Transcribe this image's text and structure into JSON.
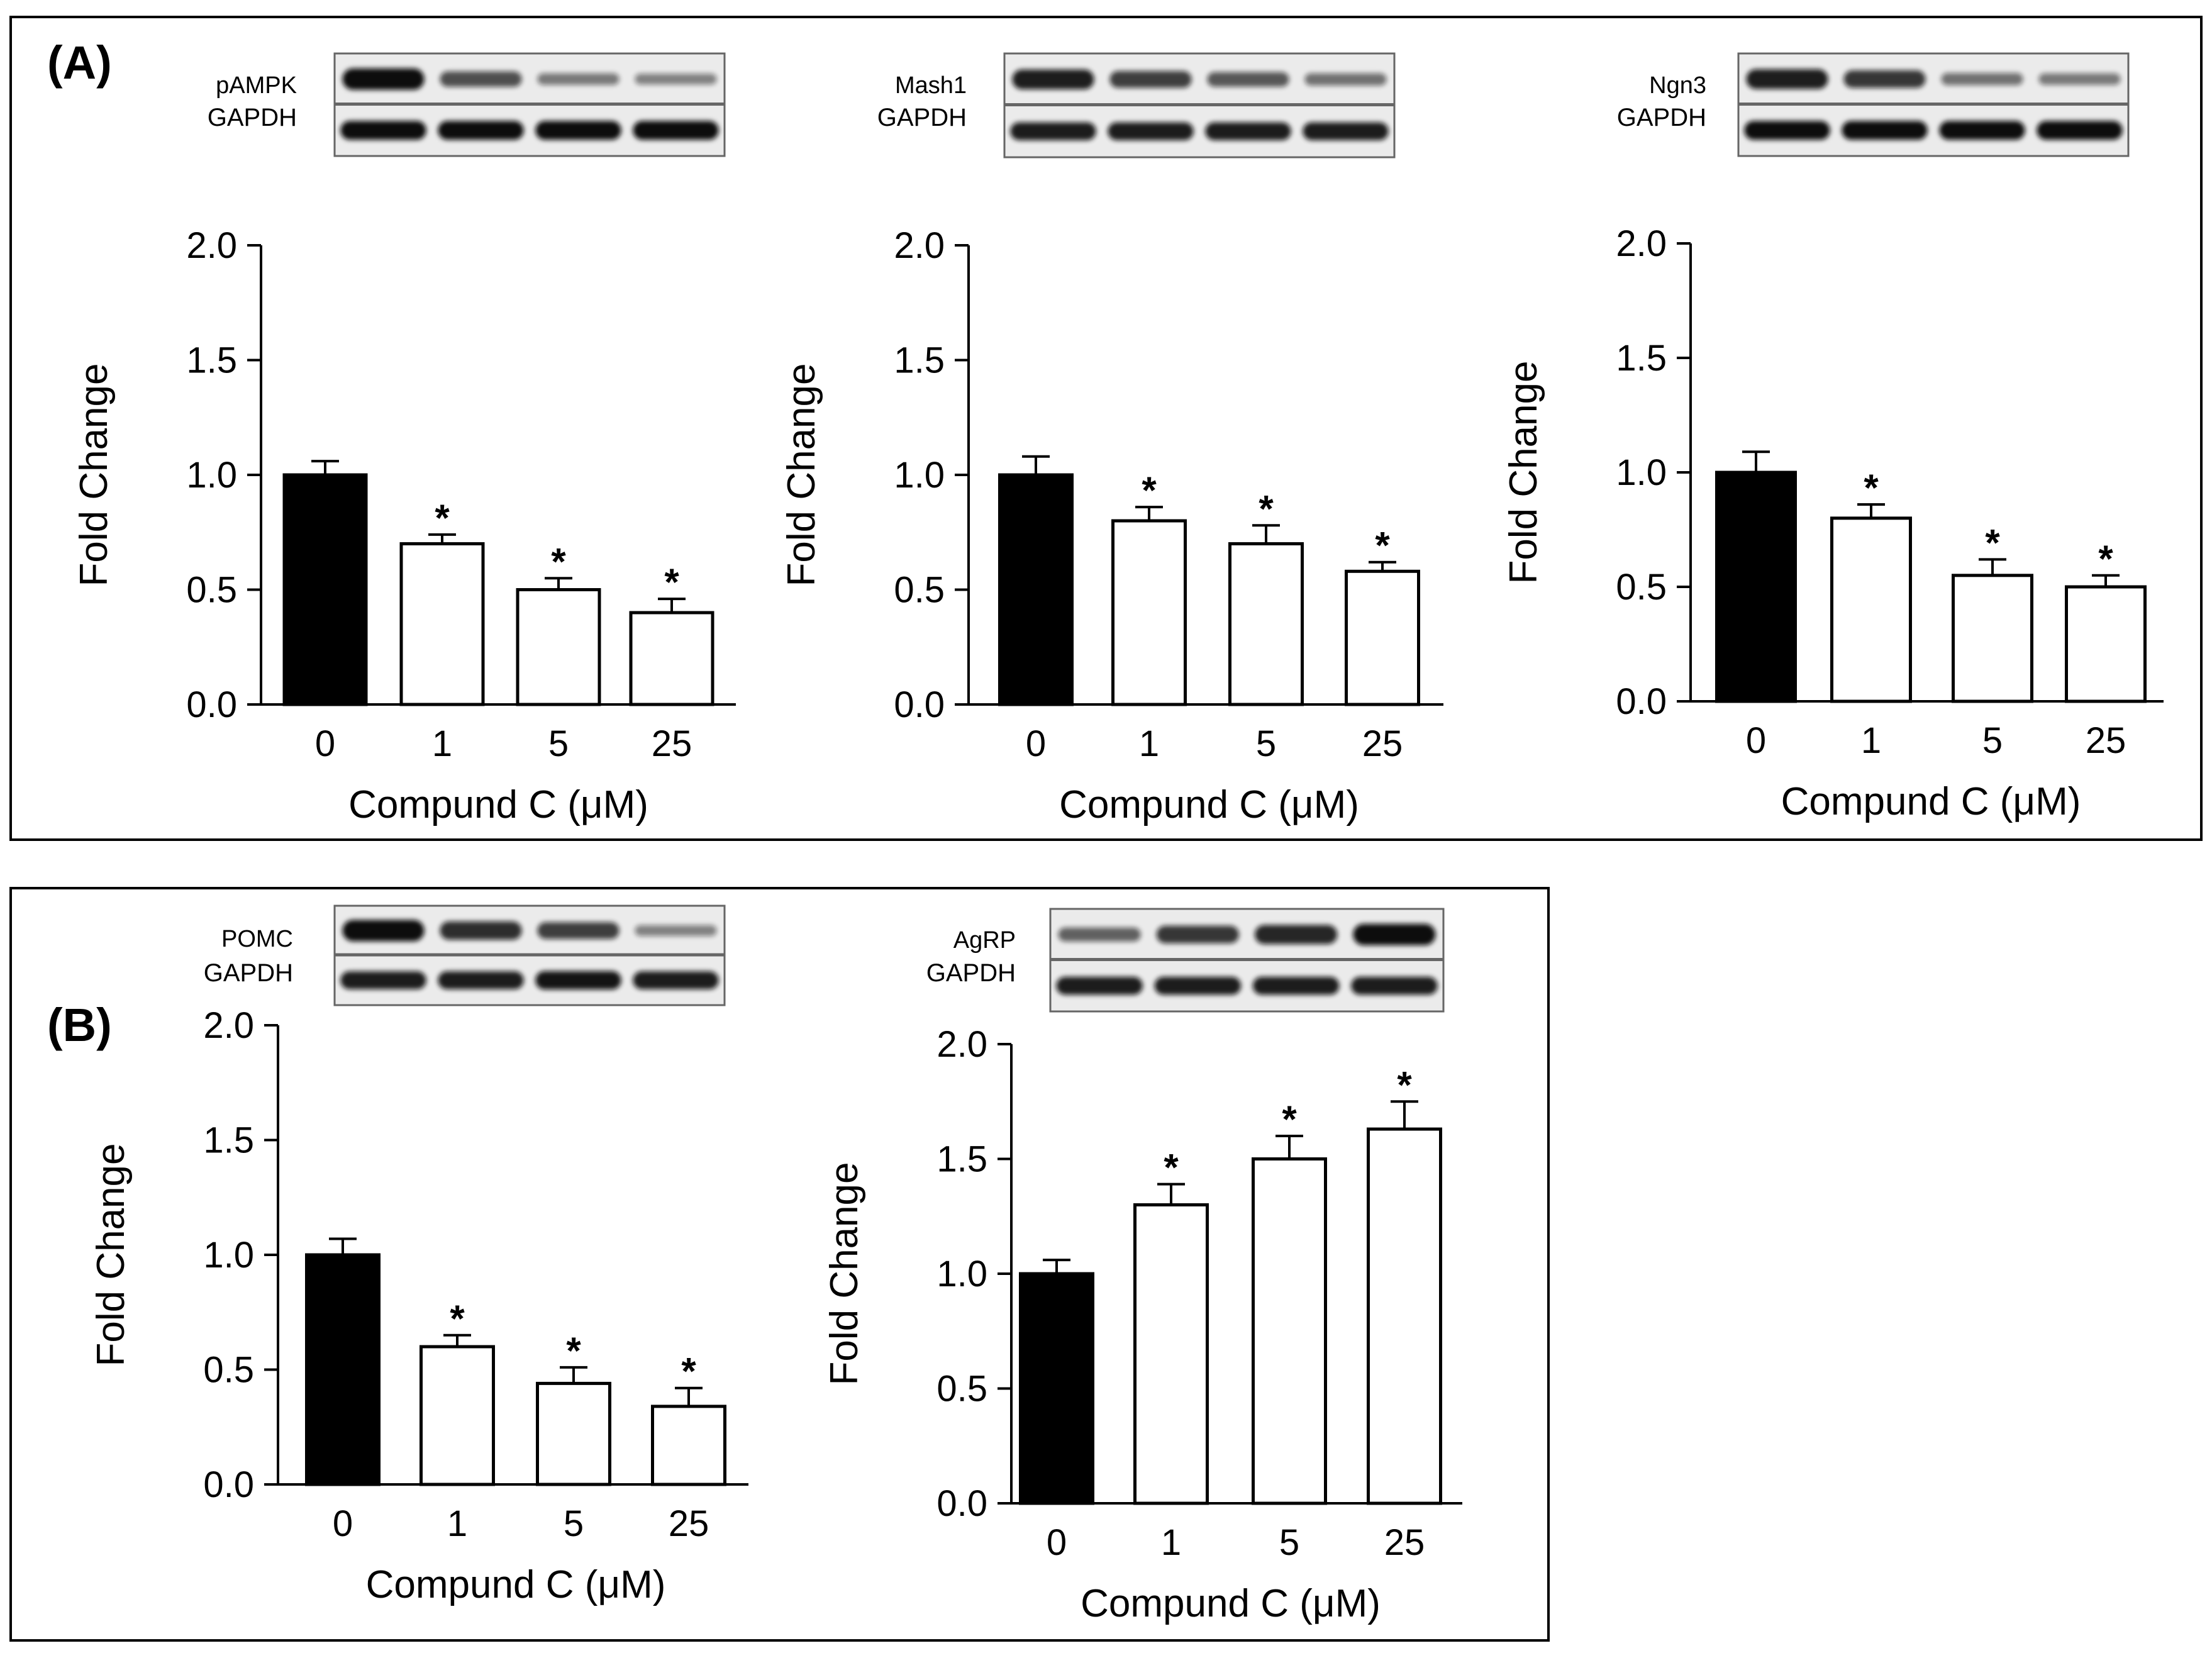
{
  "panels": [
    {
      "label": "(A)"
    },
    {
      "label": "(B)"
    }
  ],
  "chart_data": [
    {
      "type": "bar",
      "categories": [
        "0",
        "1",
        "5",
        "25"
      ],
      "values": [
        1.0,
        0.7,
        0.5,
        0.4
      ],
      "errors": [
        0.06,
        0.04,
        0.05,
        0.06
      ],
      "significance": [
        "",
        "*",
        "*",
        "*"
      ],
      "bar_colors": [
        "#000000",
        "#ffffff",
        "#ffffff",
        "#ffffff"
      ],
      "xlabel": "Compund C (μM)",
      "ylabel": "Fold Change",
      "ylim": [
        0,
        2.0
      ],
      "yticks": [
        "0.0",
        "0.5",
        "1.0",
        "1.5",
        "2.0"
      ],
      "blot_labels": [
        "pAMPK",
        "GAPDH"
      ],
      "blot_top_intensity": [
        1.0,
        0.6,
        0.35,
        0.3
      ],
      "blot_bottom_intensity": [
        1.0,
        1.0,
        1.0,
        1.0
      ]
    },
    {
      "type": "bar",
      "categories": [
        "0",
        "1",
        "5",
        "25"
      ],
      "values": [
        1.0,
        0.8,
        0.7,
        0.58
      ],
      "errors": [
        0.08,
        0.06,
        0.08,
        0.04
      ],
      "significance": [
        "",
        "*",
        "*",
        "*"
      ],
      "bar_colors": [
        "#000000",
        "#ffffff",
        "#ffffff",
        "#ffffff"
      ],
      "xlabel": "Compund C (μM)",
      "ylabel": "Fold Change",
      "ylim": [
        0,
        2.0
      ],
      "yticks": [
        "0.0",
        "0.5",
        "1.0",
        "1.5",
        "2.0"
      ],
      "blot_labels": [
        "Mash1",
        "GAPDH"
      ],
      "blot_top_intensity": [
        0.9,
        0.7,
        0.55,
        0.4
      ],
      "blot_bottom_intensity": [
        0.9,
        0.9,
        0.9,
        0.9
      ]
    },
    {
      "type": "bar",
      "categories": [
        "0",
        "1",
        "5",
        "25"
      ],
      "values": [
        1.0,
        0.8,
        0.55,
        0.5
      ],
      "errors": [
        0.09,
        0.06,
        0.07,
        0.05
      ],
      "significance": [
        "",
        "*",
        "*",
        "*"
      ],
      "bar_colors": [
        "#000000",
        "#ffffff",
        "#ffffff",
        "#ffffff"
      ],
      "xlabel": "Compund C (μM)",
      "ylabel": "Fold Change",
      "ylim": [
        0,
        2.0
      ],
      "yticks": [
        "0.0",
        "0.5",
        "1.0",
        "1.5",
        "2.0"
      ],
      "blot_labels": [
        "Ngn3",
        "GAPDH"
      ],
      "blot_top_intensity": [
        0.9,
        0.75,
        0.4,
        0.35
      ],
      "blot_bottom_intensity": [
        1.0,
        1.0,
        1.0,
        1.0
      ]
    },
    {
      "type": "bar",
      "categories": [
        "0",
        "1",
        "5",
        "25"
      ],
      "values": [
        1.0,
        0.6,
        0.44,
        0.34
      ],
      "errors": [
        0.07,
        0.05,
        0.07,
        0.08
      ],
      "significance": [
        "",
        "*",
        "*",
        "*"
      ],
      "bar_colors": [
        "#000000",
        "#ffffff",
        "#ffffff",
        "#ffffff"
      ],
      "xlabel": "Compund C (μM)",
      "ylabel": "Fold Change",
      "ylim": [
        0,
        2.0
      ],
      "yticks": [
        "0.0",
        "0.5",
        "1.0",
        "1.5",
        "2.0"
      ],
      "blot_labels": [
        "POMC",
        "GAPDH"
      ],
      "blot_top_intensity": [
        1.0,
        0.8,
        0.7,
        0.3
      ],
      "blot_bottom_intensity": [
        0.9,
        0.9,
        0.95,
        0.9
      ]
    },
    {
      "type": "bar",
      "categories": [
        "0",
        "1",
        "5",
        "25"
      ],
      "values": [
        1.0,
        1.3,
        1.5,
        1.63
      ],
      "errors": [
        0.06,
        0.09,
        0.1,
        0.12
      ],
      "significance": [
        "",
        "*",
        "*",
        "*"
      ],
      "bar_colors": [
        "#000000",
        "#ffffff",
        "#ffffff",
        "#ffffff"
      ],
      "xlabel": "Compund C (μM)",
      "ylabel": "Fold Change",
      "ylim": [
        0,
        2.0
      ],
      "yticks": [
        "0.0",
        "0.5",
        "1.0",
        "1.5",
        "2.0"
      ],
      "blot_labels": [
        "AgRP",
        "GAPDH"
      ],
      "blot_top_intensity": [
        0.5,
        0.75,
        0.85,
        1.0
      ],
      "blot_bottom_intensity": [
        0.9,
        0.9,
        0.9,
        0.9
      ]
    }
  ]
}
